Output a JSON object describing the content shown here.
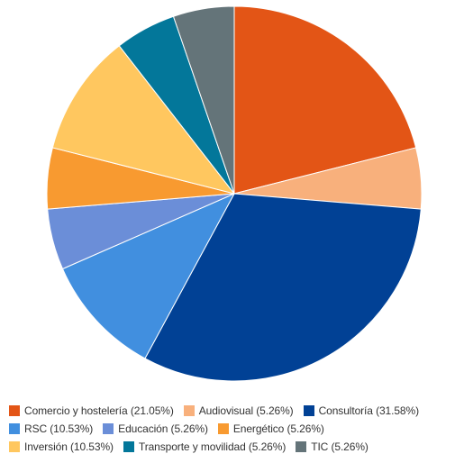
{
  "chart_data": {
    "type": "pie",
    "slices": [
      {
        "label": "Comercio y hostelería",
        "value": 21.05,
        "display": "Comercio y hostelería (21.05%)",
        "color": "#E35516"
      },
      {
        "label": "Audiovisual",
        "value": 5.26,
        "display": "Audiovisual (5.26%)",
        "color": "#F8B07C"
      },
      {
        "label": "Consultoría",
        "value": 31.58,
        "display": "Consultoría (31.58%)",
        "color": "#014195"
      },
      {
        "label": "RSC",
        "value": 10.53,
        "display": "RSC (10.53%)",
        "color": "#418FDF"
      },
      {
        "label": "Educación",
        "value": 5.26,
        "display": "Educación (5.26%)",
        "color": "#6B8ED8"
      },
      {
        "label": "Energético",
        "value": 5.26,
        "display": "Energético (5.26%)",
        "color": "#F89A30"
      },
      {
        "label": "Inversión",
        "value": 10.53,
        "display": "Inversión (10.53%)",
        "color": "#FFC75F"
      },
      {
        "label": "Transporte y movilidad",
        "value": 5.26,
        "display": "Transporte y movilidad (5.26%)",
        "color": "#03779A"
      },
      {
        "label": "TIC",
        "value": 5.26,
        "display": "TIC (5.26%)",
        "color": "#647479"
      }
    ],
    "legend_position": "bottom",
    "start_angle": "12 o'clock, clockwise",
    "slice_border_color": "#ffffff"
  }
}
